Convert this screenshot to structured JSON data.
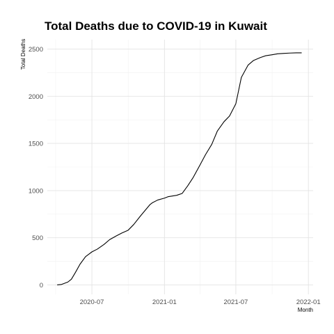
{
  "chart_data": {
    "type": "line",
    "title": "Total Deaths due to COVID-19 in Kuwait",
    "xlabel": "Month",
    "ylabel": "Total Deaths",
    "x_ticks": [
      "2020-07",
      "2021-01",
      "2021-07",
      "2022-01"
    ],
    "y_ticks": [
      "0",
      "500",
      "1000",
      "1500",
      "2000",
      "2500"
    ],
    "ylim": [
      -100,
      2600
    ],
    "xlim": [
      "2020-03-10",
      "2022-01-13"
    ],
    "grid": true,
    "legend": "none",
    "series": [
      {
        "x": [
          "2020-04-04",
          "2020-04-15",
          "2020-05-01",
          "2020-05-10",
          "2020-05-20",
          "2020-06-01",
          "2020-06-15",
          "2020-07-01",
          "2020-07-15",
          "2020-08-01",
          "2020-08-15",
          "2020-09-01",
          "2020-09-15",
          "2020-10-01",
          "2020-10-15",
          "2020-11-01",
          "2020-11-15",
          "2020-11-25",
          "2020-12-01",
          "2020-12-15",
          "2021-01-01",
          "2021-01-10",
          "2021-02-01",
          "2021-02-15",
          "2021-03-01",
          "2021-03-15",
          "2021-04-01",
          "2021-04-15",
          "2021-05-01",
          "2021-05-15",
          "2021-06-01",
          "2021-06-15",
          "2021-07-01",
          "2021-07-15",
          "2021-08-01",
          "2021-08-15",
          "2021-09-01",
          "2021-09-15",
          "2021-10-01",
          "2021-10-15",
          "2021-11-01",
          "2021-11-15",
          "2021-12-01",
          "2021-12-15"
        ],
        "y": [
          0,
          5,
          30,
          60,
          130,
          220,
          300,
          350,
          380,
          430,
          480,
          520,
          550,
          580,
          640,
          730,
          800,
          850,
          870,
          900,
          920,
          935,
          950,
          970,
          1050,
          1140,
          1270,
          1380,
          1490,
          1630,
          1730,
          1790,
          1920,
          2200,
          2330,
          2380,
          2410,
          2430,
          2440,
          2450,
          2455,
          2458,
          2460,
          2460
        ]
      }
    ]
  }
}
